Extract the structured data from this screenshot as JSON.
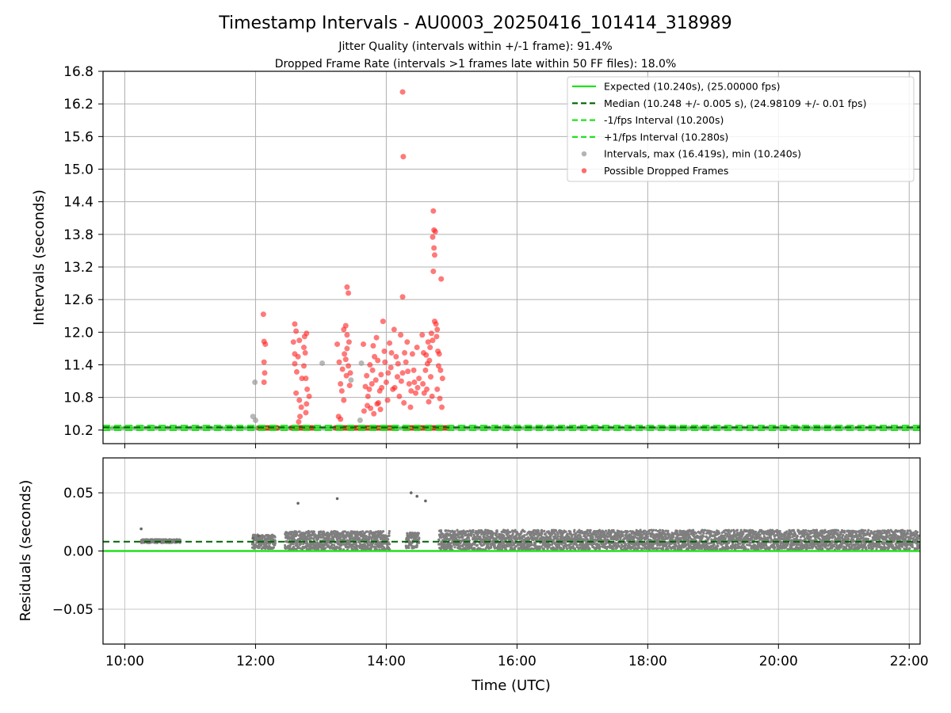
{
  "chart_data": [
    {
      "type": "scatter",
      "title": "Timestamp Intervals - AU0003_20250416_101414_318989",
      "subtitles": [
        "Jitter Quality (intervals within +/-1 frame): 91.4%",
        "Dropped Frame Rate (intervals >1 frames late within 50 FF files): 18.0%"
      ],
      "xlabel": "",
      "ylabel": "Intervals (seconds)",
      "xlim": [
        "09:40",
        "22:10"
      ],
      "ylim": [
        9.95,
        16.8
      ],
      "yticks": [
        "10.2",
        "10.8",
        "11.4",
        "12.0",
        "12.6",
        "13.2",
        "13.8",
        "14.4",
        "15.0",
        "15.6",
        "16.2",
        "16.8"
      ],
      "grid": true,
      "legend_position": "upper right",
      "expected": 10.24,
      "median": 10.248,
      "minus_interval": 10.2,
      "plus_interval": 10.28,
      "legend": [
        {
          "label": "Expected (10.240s), (25.00000 fps)",
          "style": "solid",
          "color": "#22e01f"
        },
        {
          "label": "Median (10.248 +/- 0.005 s), (24.98109 +/- 0.01 fps)",
          "style": "dashed",
          "color": "#006400"
        },
        {
          "label": "-1/fps Interval (10.200s)",
          "style": "dashed",
          "color": "#22e01f"
        },
        {
          "label": "+1/fps Interval (10.280s)",
          "style": "dashed",
          "color": "#22e01f"
        },
        {
          "label": "Intervals, max (16.419s), min (10.240s)",
          "style": "marker",
          "color": "#999999"
        },
        {
          "label": "Possible Dropped Frames",
          "style": "marker",
          "color": "#ff3b3b"
        }
      ],
      "series": [
        {
          "name": "Intervals, max (16.419s), min (10.240s)",
          "points": [
            [
              11.96,
              10.45
            ],
            [
              12.0,
              10.38
            ],
            [
              11.99,
              11.08
            ],
            [
              13.02,
              11.43
            ],
            [
              13.6,
              10.38
            ],
            [
              13.62,
              11.43
            ],
            [
              13.46,
              11.12
            ]
          ]
        },
        {
          "name": "Possible Dropped Frames",
          "points": [
            [
              12.12,
              12.33
            ],
            [
              12.13,
              11.83
            ],
            [
              12.15,
              11.78
            ],
            [
              12.13,
              11.45
            ],
            [
              12.14,
              11.25
            ],
            [
              12.13,
              11.08
            ],
            [
              12.6,
              12.15
            ],
            [
              12.62,
              12.02
            ],
            [
              12.6,
              11.6
            ],
            [
              12.6,
              11.42
            ],
            [
              12.63,
              11.27
            ],
            [
              12.62,
              10.88
            ],
            [
              12.67,
              10.75
            ],
            [
              12.68,
              10.45
            ],
            [
              12.7,
              10.62
            ],
            [
              12.66,
              10.35
            ],
            [
              12.75,
              11.92
            ],
            [
              12.78,
              11.98
            ],
            [
              12.74,
              11.72
            ],
            [
              12.76,
              11.62
            ],
            [
              12.74,
              11.38
            ],
            [
              12.77,
              11.15
            ],
            [
              12.79,
              10.95
            ],
            [
              12.82,
              10.82
            ],
            [
              12.78,
              10.68
            ],
            [
              12.77,
              10.52
            ],
            [
              12.71,
              11.15
            ],
            [
              12.65,
              11.55
            ],
            [
              12.58,
              11.82
            ],
            [
              12.67,
              11.85
            ],
            [
              13.25,
              11.78
            ],
            [
              13.28,
              11.45
            ],
            [
              13.3,
              11.05
            ],
            [
              13.32,
              10.92
            ],
            [
              13.35,
              12.05
            ],
            [
              13.38,
              12.12
            ],
            [
              13.4,
              12.83
            ],
            [
              13.42,
              12.72
            ],
            [
              13.4,
              11.95
            ],
            [
              13.43,
              11.82
            ],
            [
              13.36,
              11.6
            ],
            [
              13.39,
              11.2
            ],
            [
              13.44,
              11.02
            ],
            [
              13.35,
              10.75
            ],
            [
              13.3,
              10.4
            ],
            [
              13.27,
              10.45
            ],
            [
              13.45,
              11.25
            ],
            [
              13.33,
              11.32
            ],
            [
              13.4,
              11.7
            ],
            [
              13.38,
              11.5
            ],
            [
              13.42,
              11.38
            ],
            [
              13.65,
              11.78
            ],
            [
              13.7,
              11.2
            ],
            [
              13.72,
              10.82
            ],
            [
              13.75,
              11.4
            ],
            [
              13.78,
              11.05
            ],
            [
              13.8,
              11.75
            ],
            [
              13.82,
              11.55
            ],
            [
              13.85,
              11.9
            ],
            [
              13.87,
              11.48
            ],
            [
              13.9,
              10.92
            ],
            [
              13.92,
              11.22
            ],
            [
              13.95,
              12.2
            ],
            [
              13.97,
              11.65
            ],
            [
              14.0,
              11.08
            ],
            [
              14.02,
              10.75
            ],
            [
              14.05,
              11.8
            ],
            [
              14.07,
              11.35
            ],
            [
              14.1,
              10.95
            ],
            [
              14.12,
              12.05
            ],
            [
              14.15,
              11.55
            ],
            [
              14.17,
              11.18
            ],
            [
              14.2,
              10.82
            ],
            [
              14.22,
              11.95
            ],
            [
              14.25,
              11.25
            ],
            [
              14.27,
              10.7
            ],
            [
              14.3,
              11.45
            ],
            [
              14.32,
              11.82
            ],
            [
              14.35,
              11.05
            ],
            [
              14.37,
              10.62
            ],
            [
              14.4,
              11.6
            ],
            [
              14.42,
              11.3
            ],
            [
              14.45,
              10.88
            ],
            [
              14.47,
              11.72
            ],
            [
              14.5,
              11.15
            ],
            [
              13.68,
              11.0
            ],
            [
              13.74,
              10.95
            ],
            [
              13.79,
              11.3
            ],
            [
              13.84,
              11.12
            ],
            [
              13.88,
              10.7
            ],
            [
              13.93,
              10.98
            ],
            [
              13.98,
              11.45
            ],
            [
              14.03,
              11.25
            ],
            [
              14.08,
              11.62
            ],
            [
              14.13,
              10.98
            ],
            [
              14.18,
              11.42
            ],
            [
              14.23,
              11.1
            ],
            [
              14.28,
              11.62
            ],
            [
              14.33,
              11.28
            ],
            [
              14.38,
              10.92
            ],
            [
              14.43,
              11.08
            ],
            [
              14.48,
              10.98
            ],
            [
              13.66,
              10.55
            ],
            [
              13.71,
              10.65
            ],
            [
              13.76,
              10.6
            ],
            [
              13.81,
              10.5
            ],
            [
              13.86,
              10.68
            ],
            [
              13.91,
              10.58
            ],
            [
              14.25,
              16.42
            ],
            [
              14.26,
              15.23
            ],
            [
              14.25,
              12.65
            ],
            [
              14.55,
              11.95
            ],
            [
              14.57,
              11.62
            ],
            [
              14.6,
              11.3
            ],
            [
              14.62,
              10.95
            ],
            [
              14.64,
              11.82
            ],
            [
              14.66,
              11.48
            ],
            [
              14.68,
              11.18
            ],
            [
              14.7,
              10.82
            ],
            [
              14.72,
              14.23
            ],
            [
              14.73,
              13.88
            ],
            [
              14.75,
              13.85
            ],
            [
              14.71,
              13.75
            ],
            [
              14.73,
              13.55
            ],
            [
              14.74,
              13.42
            ],
            [
              14.72,
              13.12
            ],
            [
              14.76,
              12.15
            ],
            [
              14.74,
              12.2
            ],
            [
              14.77,
              11.92
            ],
            [
              14.79,
              11.65
            ],
            [
              14.8,
              11.38
            ],
            [
              14.82,
              10.78
            ],
            [
              14.84,
              12.98
            ],
            [
              14.86,
              11.15
            ],
            [
              14.85,
              10.62
            ],
            [
              14.78,
              12.05
            ],
            [
              14.69,
              11.98
            ],
            [
              14.65,
              10.72
            ],
            [
              14.61,
              11.58
            ],
            [
              14.58,
              10.88
            ],
            [
              14.56,
              11.05
            ],
            [
              14.63,
              11.42
            ],
            [
              14.67,
              11.72
            ],
            [
              14.71,
              11.85
            ],
            [
              14.78,
              10.95
            ],
            [
              14.81,
              11.6
            ],
            [
              14.83,
              11.3
            ]
          ]
        },
        {
          "name": "Possible Dropped Frames (baseline)",
          "x_ranges": [
            [
              12.05,
              12.35
            ],
            [
              12.55,
              12.88
            ],
            [
              13.22,
              13.95
            ],
            [
              14.0,
              14.1
            ],
            [
              14.3,
              14.6
            ],
            [
              14.7,
              14.95
            ]
          ],
          "y": 10.24
        }
      ]
    },
    {
      "type": "scatter",
      "title": "",
      "xlabel": "Time (UTC)",
      "ylabel": "Residuals (seconds)",
      "xlim": [
        "09:40",
        "22:10"
      ],
      "ylim": [
        -0.08,
        0.08
      ],
      "xticks": [
        "10:00",
        "12:00",
        "14:00",
        "16:00",
        "18:00",
        "20:00",
        "22:00"
      ],
      "yticks": [
        "−0.05",
        "0.00",
        "0.05"
      ],
      "grid": true,
      "median_residual": 0.008,
      "expected_residual": 0.0,
      "outliers": [
        [
          10.25,
          0.019
        ],
        [
          11.96,
          0.011
        ],
        [
          12.05,
          0.013
        ],
        [
          12.65,
          0.041
        ],
        [
          13.25,
          0.045
        ],
        [
          14.38,
          0.05
        ],
        [
          14.47,
          0.047
        ],
        [
          14.6,
          0.043
        ]
      ],
      "bands": [
        [
          10.25,
          10.85,
          0.007,
          0.01
        ],
        [
          11.95,
          12.3,
          0.002,
          0.014
        ],
        [
          12.45,
          14.05,
          0.001,
          0.017
        ],
        [
          14.3,
          14.5,
          0.002,
          0.016
        ],
        [
          14.8,
          22.15,
          0.001,
          0.018
        ]
      ]
    }
  ]
}
